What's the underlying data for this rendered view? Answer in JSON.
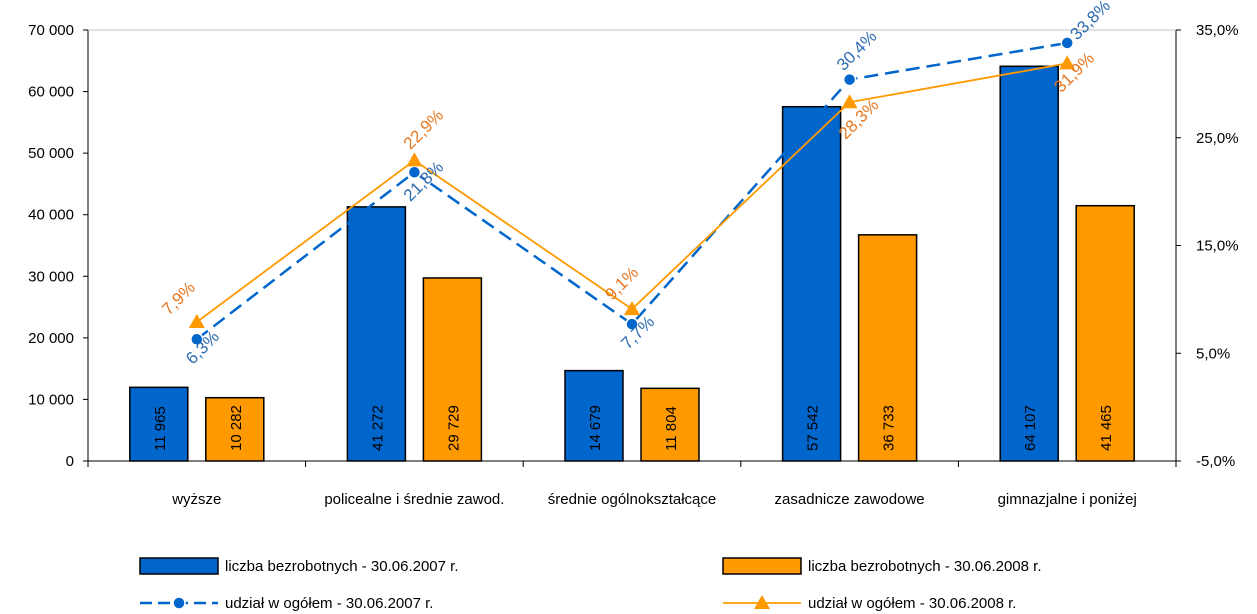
{
  "chart_data": {
    "type": "bar",
    "categories": [
      "wyższe",
      "policealne i średnie zawod.",
      "średnie ogólnokształcące",
      "zasadnicze zawodowe",
      "gimnazjalne i poniżej"
    ],
    "series": [
      {
        "name": "liczba bezrobotnych - 30.06.2007 r.",
        "kind": "bar",
        "axis": "left",
        "color": "#0066CC",
        "values": [
          11965,
          41272,
          14679,
          57542,
          64107
        ],
        "labels": [
          "11 965",
          "41 272",
          "14 679",
          "57 542",
          "64 107"
        ]
      },
      {
        "name": "liczba bezrobotnych - 30.06.2008 r.",
        "kind": "bar",
        "axis": "left",
        "color": "#FF9900",
        "values": [
          10282,
          29729,
          11804,
          36733,
          41465
        ],
        "labels": [
          "10 282",
          "29 729",
          "11 804",
          "36 733",
          "41 465"
        ]
      },
      {
        "name": "udział w ogółem - 30.06.2007 r.",
        "kind": "line",
        "axis": "right",
        "color": "#0066CC",
        "marker": "circle",
        "dash": true,
        "values": [
          6.3,
          21.8,
          7.7,
          30.4,
          33.8
        ],
        "labels": [
          "6,3%",
          "21,8%",
          "7,7%",
          "30,4%",
          "33,8%"
        ]
      },
      {
        "name": "udział w ogółem - 30.06.2008 r.",
        "kind": "line",
        "axis": "right",
        "color": "#FF9900",
        "marker": "triangle",
        "dash": false,
        "values": [
          7.9,
          22.9,
          9.1,
          28.3,
          31.9
        ],
        "labels": [
          "7,9%",
          "22,9%",
          "9,1%",
          "28,3%",
          "31,9%"
        ]
      }
    ],
    "y_left": {
      "min": 0,
      "max": 70000,
      "ticks": [
        0,
        10000,
        20000,
        30000,
        40000,
        50000,
        60000,
        70000
      ],
      "tick_labels": [
        "0",
        "10 000",
        "20 000",
        "30 000",
        "40 000",
        "50 000",
        "60 000",
        "70 000"
      ]
    },
    "y_right": {
      "min": -5,
      "max": 35,
      "ticks": [
        -5,
        5,
        15,
        25,
        35
      ],
      "tick_labels": [
        "-5,0%",
        "5,0%",
        "15,0%",
        "25,0%",
        "35,0%"
      ]
    },
    "grid": false,
    "legend": "bottom",
    "label_color_2007": "#2E6DB4",
    "label_color_2008": "#E87722",
    "bar_border": "#000000"
  }
}
